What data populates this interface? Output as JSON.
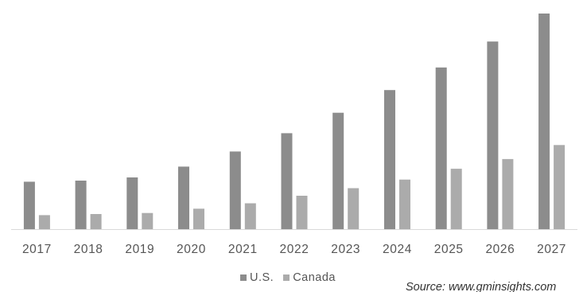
{
  "chart_data": {
    "type": "bar",
    "categories": [
      "2017",
      "2018",
      "2019",
      "2020",
      "2021",
      "2022",
      "2023",
      "2024",
      "2025",
      "2026",
      "2027"
    ],
    "series": [
      {
        "name": "U.S.",
        "color": "#8c8c8c",
        "values": [
          22,
          22.5,
          24,
          29,
          36,
          44.5,
          54,
          64.5,
          75,
          87,
          100
        ]
      },
      {
        "name": "Canada",
        "color": "#ababab",
        "values": [
          6.5,
          7,
          7.5,
          9.5,
          12,
          15.5,
          19,
          23,
          28,
          32.5,
          39
        ]
      }
    ],
    "ylim": [
      0,
      100
    ],
    "grid": false,
    "legend_position": "bottom",
    "source": "Source: www.gminsights.com"
  }
}
